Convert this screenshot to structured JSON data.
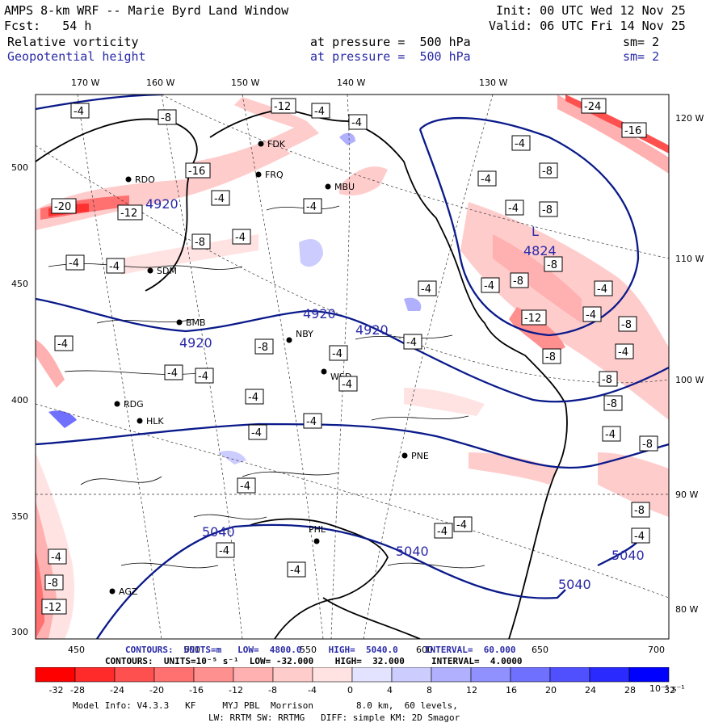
{
  "header": {
    "title": "AMPS 8-km WRF -- Marie Byrd Land Window",
    "init": "Init: 00 UTC Wed 12 Nov 25",
    "fcst": "Fcst:   54 h",
    "valid": "Valid: 06 UTC Fri 14 Nov 25",
    "field1": "Relative vorticity",
    "field1_level": "at pressure =  500 hPa",
    "field1_sm": "sm= 2",
    "field2": "Geopotential height",
    "field2_level": "at pressure =  500 hPa",
    "field2_sm": "sm= 2"
  },
  "map": {
    "top_lon_labels": [
      "170 W",
      "160 W",
      "150 W",
      "140 W",
      "130 W"
    ],
    "right_lon_labels": [
      "120 W",
      "110 W",
      "100 W",
      "90 W",
      "80 W"
    ],
    "left_axis": [
      "500",
      "450",
      "400",
      "350",
      "300"
    ],
    "bottom_axis": [
      "450",
      "500",
      "550",
      "600",
      "650",
      "700"
    ],
    "stations": [
      {
        "name": "FDK"
      },
      {
        "name": "FRQ"
      },
      {
        "name": "RDO"
      },
      {
        "name": "MBU"
      },
      {
        "name": "SDM"
      },
      {
        "name": "BMB"
      },
      {
        "name": "NBY"
      },
      {
        "name": "WSD"
      },
      {
        "name": "RDG"
      },
      {
        "name": "HLK"
      },
      {
        "name": "PNE"
      },
      {
        "name": "PHL"
      },
      {
        "name": "AGZ"
      }
    ],
    "height_labels": [
      "4920",
      "4920",
      "4920",
      "4920",
      "4824",
      "5040",
      "5040",
      "5040",
      "5040"
    ],
    "low_label": "L",
    "vorticity_labels": [
      "-4",
      "-8",
      "-12",
      "-16",
      "-20",
      "-24"
    ]
  },
  "footer": {
    "contours_height": "CONTOURS:  UNITS=m   LOW=  4800.0     HIGH=  5040.0     INTERVAL=  60.000",
    "contours_vort": "CONTOURS:  UNITS=10⁻⁵ s⁻¹  LOW= -32.000    HIGH=  32.000     INTERVAL=  4.0000",
    "colorbar_labels": [
      "-32",
      "-28",
      "-24",
      "-20",
      "-16",
      "-12",
      "-8",
      "-4",
      "0",
      "4",
      "8",
      "12",
      "16",
      "20",
      "24",
      "28",
      "32"
    ],
    "colorbar_unit": "10⁻⁵ s⁻¹",
    "model_info": "Model Info: V4.3.3   KF     MYJ PBL  Morrison        8.0 km,  60 levels,",
    "model_info2": "LW: RRTM SW: RRTMG   DIFF: simple KM: 2D Smagor"
  },
  "colors": {
    "neg": [
      "#ff0000",
      "#ff2a2a",
      "#ff5050",
      "#ff7070",
      "#ff9090",
      "#ffb0b0",
      "#ffcccc",
      "#ffe3e3"
    ],
    "pos": [
      "#e3e3ff",
      "#ccccff",
      "#b0b0ff",
      "#9090ff",
      "#7070ff",
      "#5050ff",
      "#2a2aff",
      "#0000ff"
    ],
    "height_line": "#0a1a8a",
    "label_blue": "#2a2aa8"
  }
}
